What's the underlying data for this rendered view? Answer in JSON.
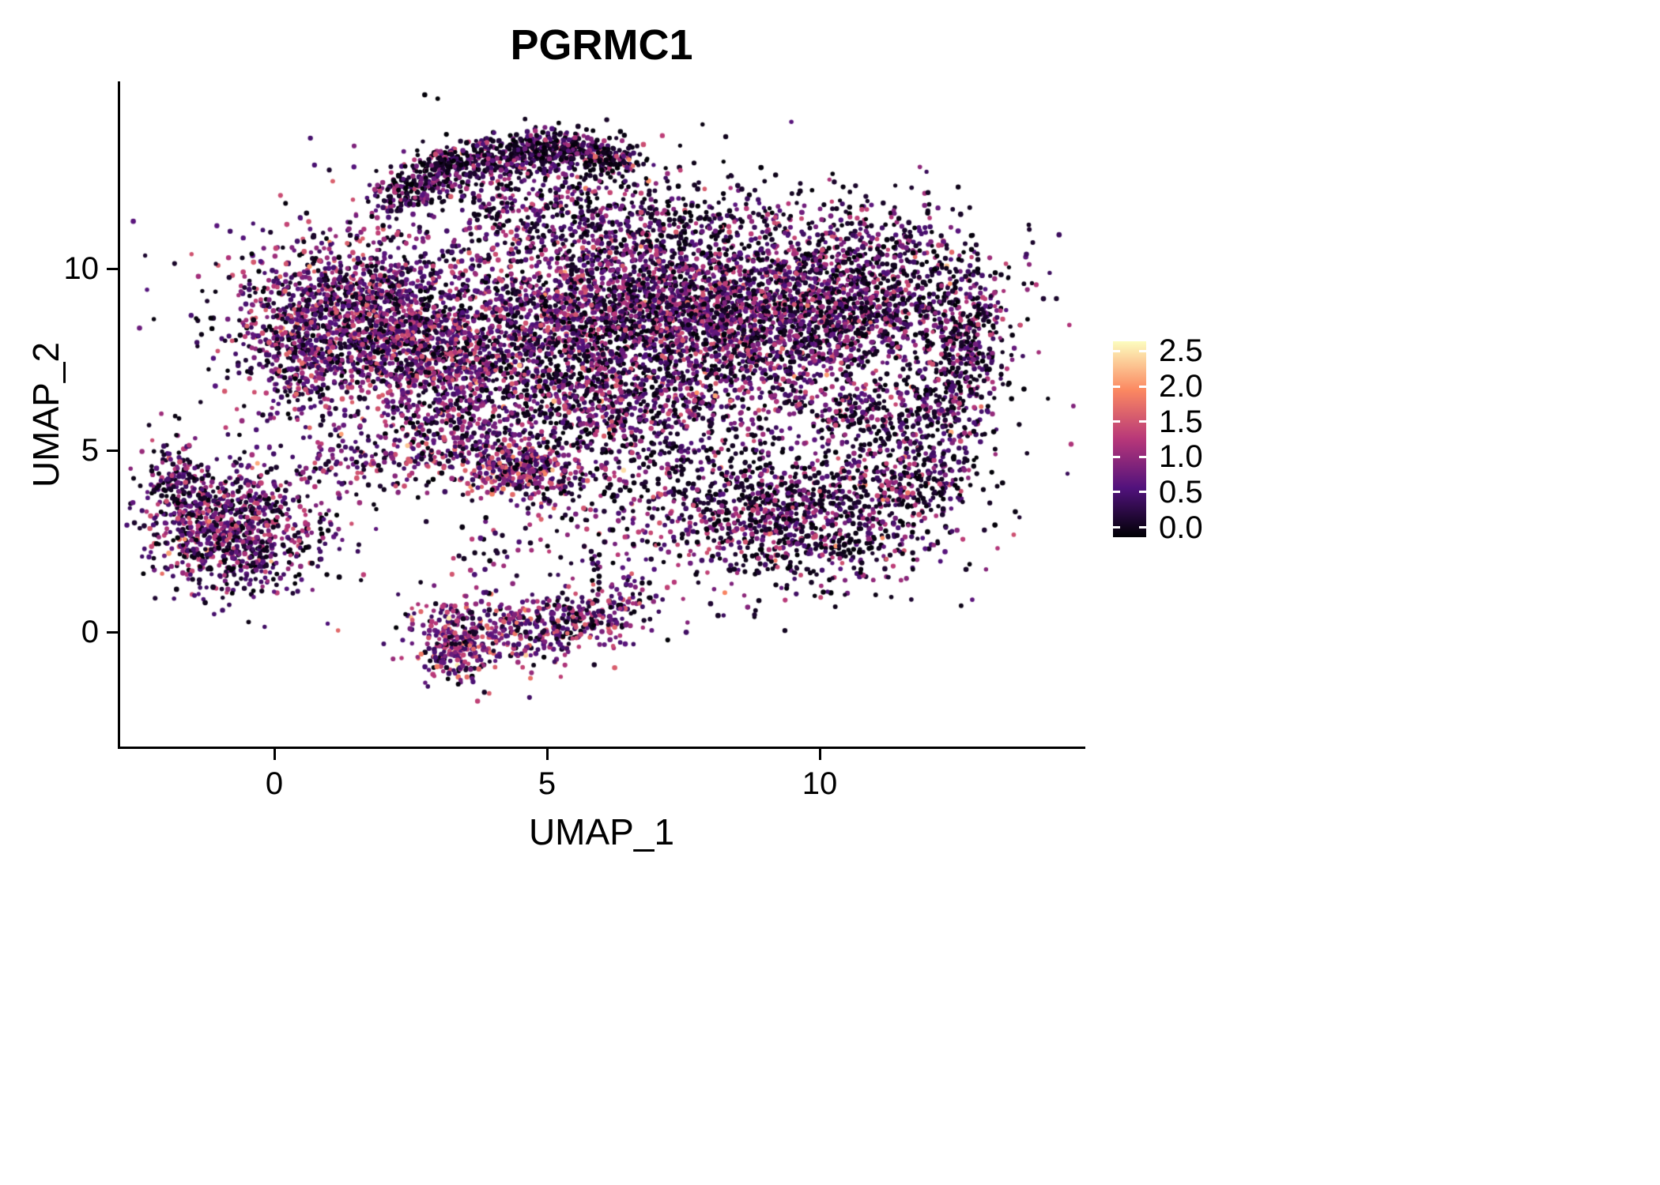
{
  "title": "PGRMC1",
  "axes": {
    "x": {
      "label": "UMAP_1",
      "ticks": [
        0,
        5,
        10
      ]
    },
    "y": {
      "label": "UMAP_2",
      "ticks": [
        0,
        5,
        10
      ]
    }
  },
  "colorbar": {
    "ticks": [
      2.5,
      2.0,
      1.5,
      1.0,
      0.5,
      0.0
    ],
    "tick_labels": [
      "2.5",
      "2.0",
      "1.5",
      "1.0",
      "0.5",
      "0.0"
    ],
    "stops": [
      {
        "t": 0.0,
        "color": "#000004"
      },
      {
        "t": 0.25,
        "color": "#51127c"
      },
      {
        "t": 0.5,
        "color": "#b73779"
      },
      {
        "t": 0.75,
        "color": "#fb8861"
      },
      {
        "t": 1.0,
        "color": "#fcfdbf"
      }
    ]
  },
  "chart_data": {
    "type": "scatter",
    "title": "PGRMC1",
    "xlabel": "UMAP_1",
    "ylabel": "UMAP_2",
    "xlim": [
      -2.8,
      14.8
    ],
    "ylim": [
      -3.2,
      15.1
    ],
    "grid": false,
    "legend_position": "right",
    "color_scale": {
      "min": 0.0,
      "max": 2.5,
      "colormap": "magma"
    },
    "seed": 42,
    "point_radius": 3,
    "clusters": [
      {
        "x": 2.5,
        "y": 12.2,
        "sx": 0.35,
        "sy": 0.3,
        "n": 150,
        "p0": 0.5,
        "boost": 0.9
      },
      {
        "x": 3.2,
        "y": 12.8,
        "sx": 0.4,
        "sy": 0.28,
        "n": 180,
        "p0": 0.55,
        "boost": 0.9
      },
      {
        "x": 4.2,
        "y": 13.1,
        "sx": 0.5,
        "sy": 0.28,
        "n": 220,
        "p0": 0.55,
        "boost": 0.9
      },
      {
        "x": 5.2,
        "y": 13.3,
        "sx": 0.5,
        "sy": 0.25,
        "n": 220,
        "p0": 0.6,
        "boost": 0.9
      },
      {
        "x": 6.0,
        "y": 13.0,
        "sx": 0.45,
        "sy": 0.3,
        "n": 160,
        "p0": 0.6,
        "boost": 0.9
      },
      {
        "x": 4.6,
        "y": 12.2,
        "sx": 1.1,
        "sy": 0.5,
        "n": 160,
        "p0": 0.5,
        "boost": 0.9
      },
      {
        "x": 5.6,
        "y": 11.3,
        "sx": 1.3,
        "sy": 0.55,
        "n": 300,
        "p0": 0.45,
        "boost": 1.0
      },
      {
        "x": 1.6,
        "y": 8.6,
        "sx": 1.15,
        "sy": 1.25,
        "n": 1500,
        "p0": 0.32,
        "boost": 1.05
      },
      {
        "x": 0.4,
        "y": 7.8,
        "sx": 0.45,
        "sy": 0.9,
        "n": 260,
        "p0": 0.35,
        "boost": 1.1
      },
      {
        "x": 3.3,
        "y": 7.5,
        "sx": 0.95,
        "sy": 1.05,
        "n": 700,
        "p0": 0.35,
        "boost": 1.0
      },
      {
        "x": 5.5,
        "y": 8.6,
        "sx": 1.25,
        "sy": 1.3,
        "n": 1150,
        "p0": 0.38,
        "boost": 1.0
      },
      {
        "x": 7.6,
        "y": 8.8,
        "sx": 1.25,
        "sy": 1.05,
        "n": 1400,
        "p0": 0.35,
        "boost": 1.0
      },
      {
        "x": 9.5,
        "y": 8.6,
        "sx": 1.05,
        "sy": 1.15,
        "n": 900,
        "p0": 0.45,
        "boost": 0.95
      },
      {
        "x": 11.4,
        "y": 9.0,
        "sx": 1.0,
        "sy": 0.95,
        "n": 700,
        "p0": 0.5,
        "boost": 0.9
      },
      {
        "x": 12.7,
        "y": 7.6,
        "sx": 0.45,
        "sy": 1.05,
        "n": 260,
        "p0": 0.5,
        "boost": 0.9
      },
      {
        "x": 10.6,
        "y": 6.1,
        "sx": 0.55,
        "sy": 0.5,
        "n": 160,
        "p0": 0.5,
        "boost": 0.95
      },
      {
        "x": 12.2,
        "y": 6.2,
        "sx": 0.45,
        "sy": 0.6,
        "n": 150,
        "p0": 0.5,
        "boost": 0.9
      },
      {
        "x": 6.5,
        "y": 6.3,
        "sx": 1.6,
        "sy": 0.7,
        "n": 600,
        "p0": 0.4,
        "boost": 1.0
      },
      {
        "x": 9.7,
        "y": 3.2,
        "sx": 1.35,
        "sy": 0.95,
        "n": 1100,
        "p0": 0.55,
        "boost": 0.95
      },
      {
        "x": 11.7,
        "y": 4.6,
        "sx": 0.7,
        "sy": 0.7,
        "n": 260,
        "p0": 0.5,
        "boost": 0.95
      },
      {
        "x": 3.6,
        "y": 5.1,
        "sx": 1.05,
        "sy": 0.6,
        "n": 350,
        "p0": 0.35,
        "boost": 1.05
      },
      {
        "x": 4.6,
        "y": 4.4,
        "sx": 0.5,
        "sy": 0.35,
        "n": 260,
        "p0": 0.18,
        "boost": 1.25
      },
      {
        "x": -0.7,
        "y": 2.9,
        "sx": 0.8,
        "sy": 0.85,
        "n": 950,
        "p0": 0.4,
        "boost": 1.0
      },
      {
        "x": -1.75,
        "y": 4.3,
        "sx": 0.25,
        "sy": 0.5,
        "n": 120,
        "p0": 0.45,
        "boost": 0.95
      },
      {
        "x": 4.0,
        "y": 0.0,
        "sx": 0.85,
        "sy": 0.55,
        "n": 330,
        "p0": 0.18,
        "boost": 1.2
      },
      {
        "x": 5.6,
        "y": 0.3,
        "sx": 0.6,
        "sy": 0.4,
        "n": 170,
        "p0": 0.3,
        "boost": 1.1
      },
      {
        "x": 3.3,
        "y": -0.4,
        "sx": 0.3,
        "sy": 0.5,
        "n": 160,
        "p0": 0.2,
        "boost": 1.25
      },
      {
        "x": 5.5,
        "y": 2.4,
        "sx": 1.5,
        "sy": 0.9,
        "n": 120,
        "p0": 0.45,
        "boost": 1.0
      },
      {
        "x": 6.9,
        "y": 4.1,
        "sx": 1.2,
        "sy": 0.8,
        "n": 200,
        "p0": 0.45,
        "boost": 1.0
      },
      {
        "x": 6.5,
        "y": 8.5,
        "sx": 3.6,
        "sy": 2.4,
        "n": 420,
        "p0": 0.45,
        "boost": 0.95
      },
      {
        "x": 8.5,
        "y": 11.3,
        "sx": 1.8,
        "sy": 0.7,
        "n": 200,
        "p0": 0.55,
        "boost": 0.9
      },
      {
        "x": 10.8,
        "y": 10.6,
        "sx": 1.0,
        "sy": 0.6,
        "n": 180,
        "p0": 0.55,
        "boost": 0.9
      },
      {
        "x": 1.3,
        "y": 4.6,
        "sx": 0.8,
        "sy": 0.4,
        "n": 80,
        "p0": 0.4,
        "boost": 1.0
      },
      {
        "x": 6.3,
        "y": 0.9,
        "sx": 0.45,
        "sy": 0.45,
        "n": 80,
        "p0": 0.35,
        "boost": 1.1
      }
    ]
  }
}
